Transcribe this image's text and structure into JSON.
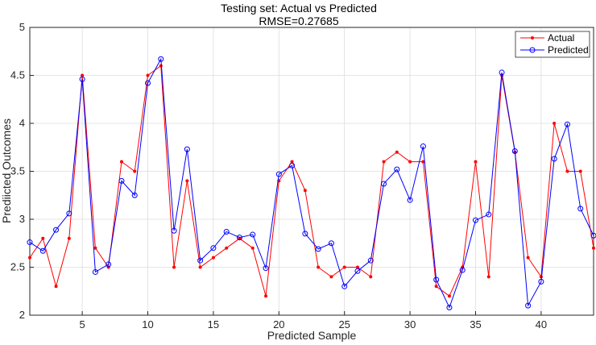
{
  "chart_data": {
    "type": "line",
    "title": "Testing set: Actual vs Predicted",
    "subtitle": "RMSE=0.27685",
    "xlabel": "Predicted Sample",
    "ylabel": "Prediicted Outcomes",
    "xlim": [
      1,
      44
    ],
    "ylim": [
      2,
      5
    ],
    "xticks": [
      5,
      10,
      15,
      20,
      25,
      30,
      35,
      40
    ],
    "yticks": [
      2,
      2.5,
      3,
      3.5,
      4,
      4.5,
      5
    ],
    "grid": true,
    "legend_position": "top-right",
    "x": [
      1,
      2,
      3,
      4,
      5,
      6,
      7,
      8,
      9,
      10,
      11,
      12,
      13,
      14,
      15,
      16,
      17,
      18,
      19,
      20,
      21,
      22,
      23,
      24,
      25,
      26,
      27,
      28,
      29,
      30,
      31,
      32,
      33,
      34,
      35,
      36,
      37,
      38,
      39,
      40,
      41,
      42,
      43,
      44
    ],
    "series": [
      {
        "name": "Actual",
        "color": "#ff0000",
        "marker": "dot",
        "values": [
          2.6,
          2.8,
          2.3,
          2.8,
          4.5,
          2.7,
          2.5,
          3.6,
          3.5,
          4.5,
          4.6,
          2.5,
          3.4,
          2.5,
          2.6,
          2.7,
          2.8,
          2.7,
          2.2,
          3.4,
          3.6,
          3.3,
          2.5,
          2.4,
          2.5,
          2.5,
          2.4,
          3.6,
          3.7,
          3.6,
          3.6,
          2.3,
          2.2,
          2.5,
          3.6,
          2.4,
          4.5,
          3.7,
          2.6,
          2.4,
          4.0,
          3.5,
          3.5,
          2.7
        ]
      },
      {
        "name": "Predicted",
        "color": "#0000ff",
        "marker": "circle",
        "values": [
          2.76,
          2.67,
          2.89,
          3.06,
          4.46,
          2.45,
          2.53,
          3.4,
          3.25,
          4.42,
          4.67,
          2.88,
          3.73,
          2.57,
          2.7,
          2.87,
          2.81,
          2.84,
          2.49,
          3.47,
          3.56,
          2.85,
          2.69,
          2.75,
          2.3,
          2.46,
          2.57,
          3.37,
          3.52,
          3.2,
          3.76,
          2.37,
          2.08,
          2.47,
          2.99,
          3.05,
          4.53,
          3.71,
          2.1,
          2.35,
          3.63,
          3.99,
          3.11,
          2.83
        ]
      }
    ]
  }
}
